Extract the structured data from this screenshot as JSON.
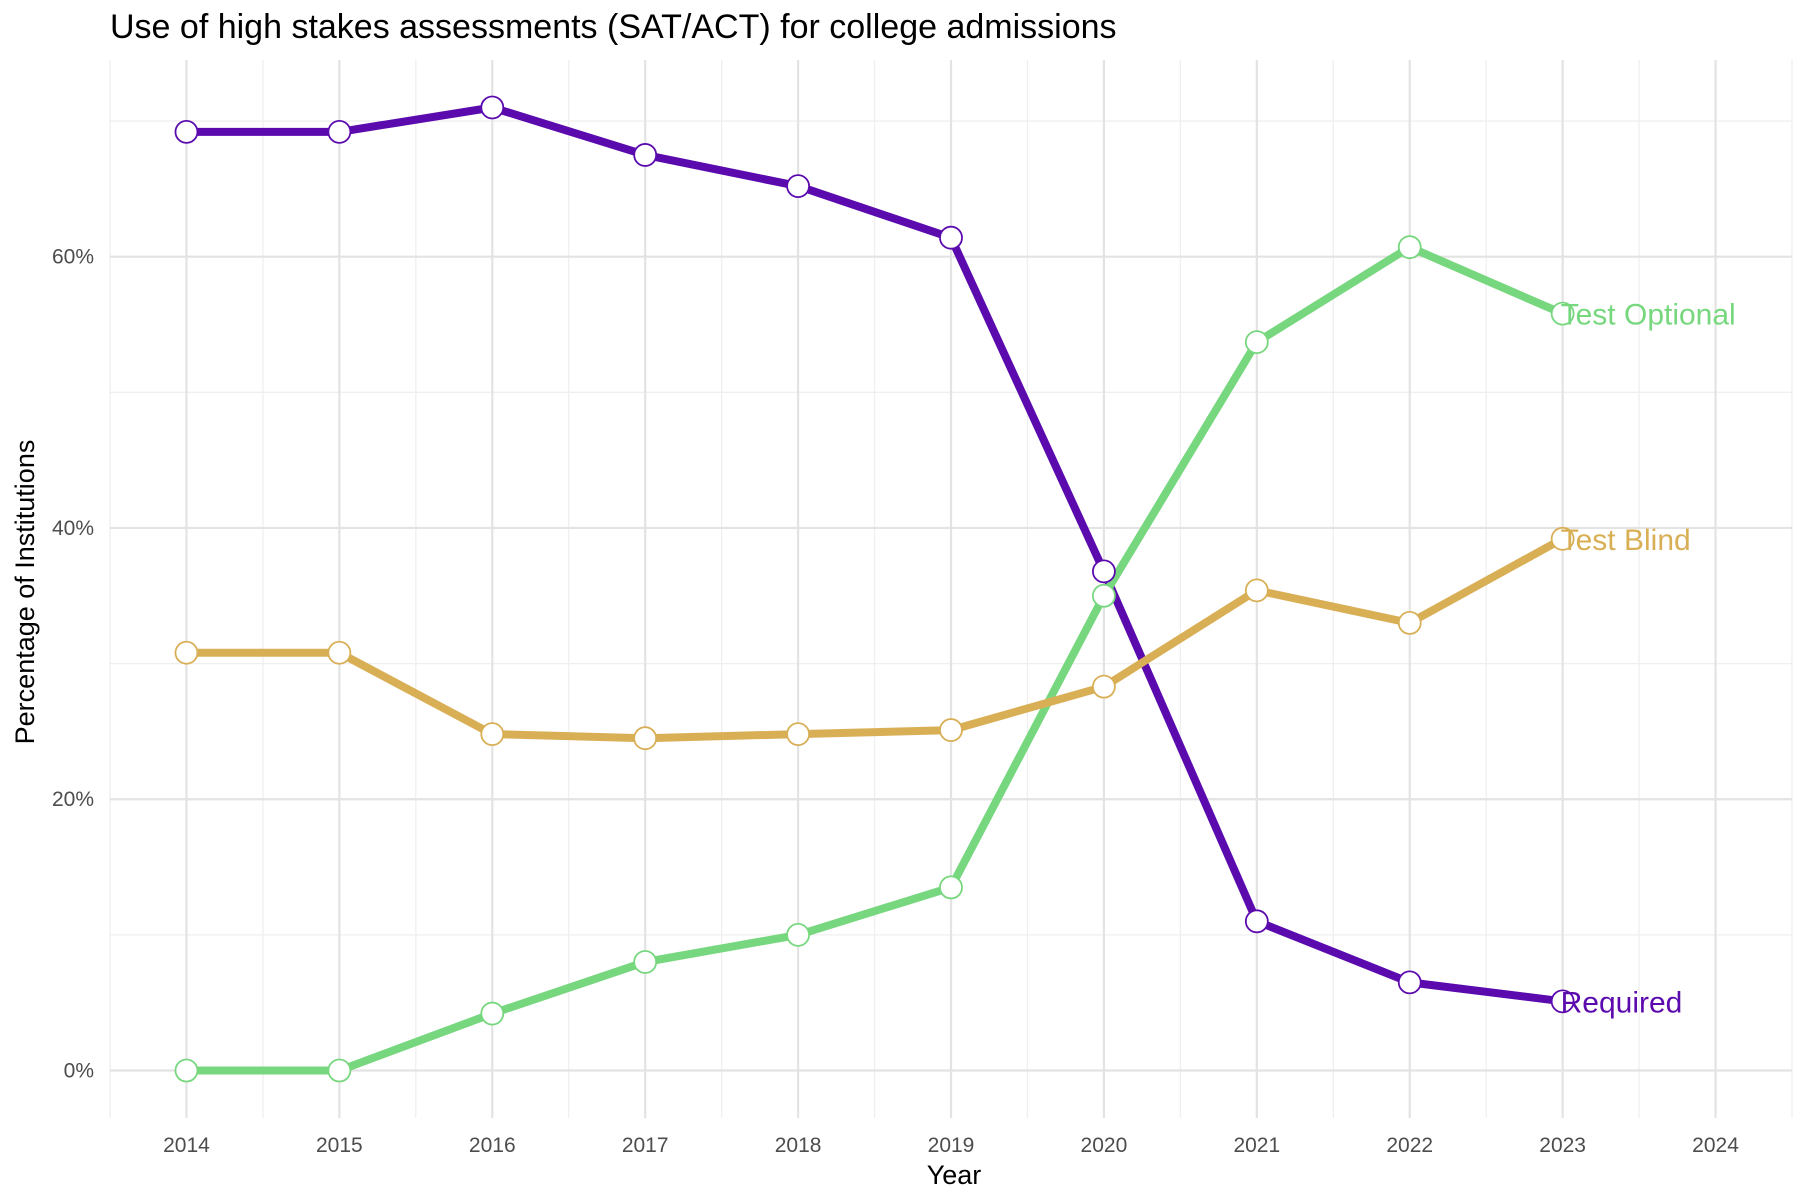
{
  "chart_data": {
    "type": "line",
    "title": "Use of high stakes assessments (SAT/ACT) for college admissions",
    "xlabel": "Year",
    "ylabel": "Percentage of Institutions",
    "x_ticks": [
      "2014",
      "2015",
      "2016",
      "2017",
      "2018",
      "2019",
      "2020",
      "2021",
      "2022",
      "2023",
      "2024"
    ],
    "y_ticks": [
      "0%",
      "20%",
      "40%",
      "60%"
    ],
    "xlim": [
      2013.5,
      2024.5
    ],
    "ylim": [
      -3.5,
      74.5
    ],
    "grid": true,
    "legend": "direct labels at line ends",
    "x": [
      2014,
      2015,
      2016,
      2017,
      2018,
      2019,
      2020,
      2021,
      2022,
      2023
    ],
    "series": [
      {
        "name": "Required",
        "color": "#5B0AAE",
        "values": [
          69.2,
          69.2,
          71.0,
          67.5,
          65.2,
          61.4,
          36.8,
          11.0,
          6.5,
          5.1
        ]
      },
      {
        "name": "Test Optional",
        "color": "#77D77E",
        "values": [
          0.0,
          0.0,
          4.2,
          8.0,
          10.0,
          13.5,
          35.0,
          53.7,
          60.7,
          55.8
        ]
      },
      {
        "name": "Test Blind",
        "color": "#D9AF56",
        "values": [
          30.8,
          30.8,
          24.8,
          24.5,
          24.8,
          25.1,
          28.3,
          35.4,
          33.0,
          39.2
        ]
      }
    ]
  }
}
